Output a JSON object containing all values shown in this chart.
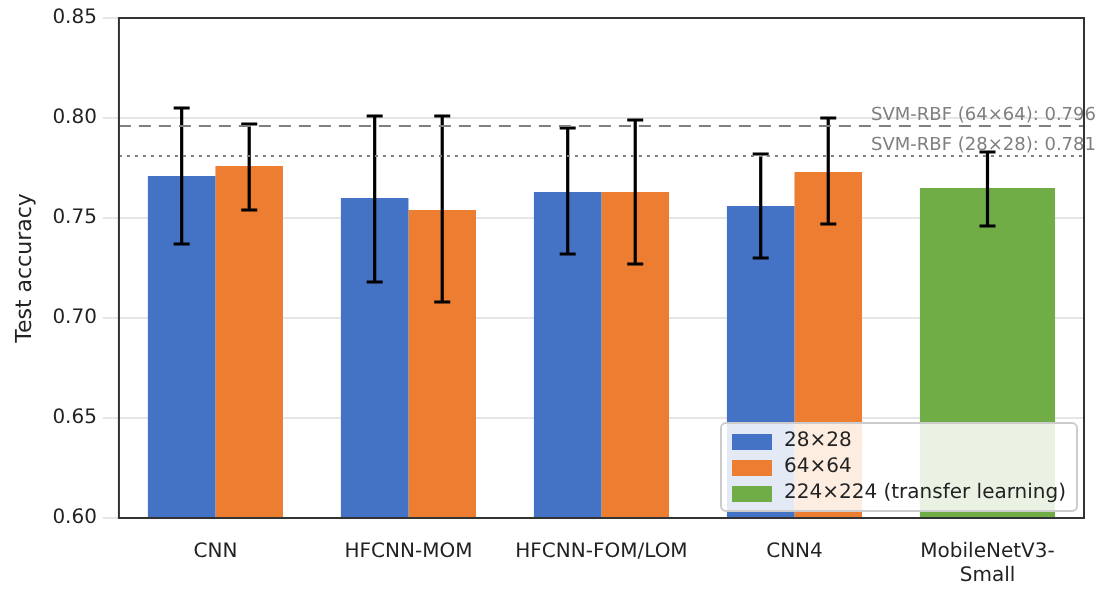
{
  "chart_data": {
    "type": "bar",
    "ylabel": "Test accuracy",
    "categories": [
      "CNN",
      "HFCNN-MOM",
      "HFCNN-FOM/LOM",
      "CNN4",
      "MobileNetV3-\nSmall"
    ],
    "series": [
      {
        "name": "28×28",
        "color": "#4472c4",
        "values": [
          0.771,
          0.76,
          0.763,
          0.756,
          null
        ],
        "errors": [
          [
            0.737,
            0.805
          ],
          [
            0.718,
            0.801
          ],
          [
            0.732,
            0.795
          ],
          [
            0.73,
            0.782
          ],
          null
        ]
      },
      {
        "name": "64×64",
        "color": "#ed7d31",
        "values": [
          0.776,
          0.754,
          0.763,
          0.773,
          null
        ],
        "errors": [
          [
            0.754,
            0.797
          ],
          [
            0.708,
            0.801
          ],
          [
            0.727,
            0.799
          ],
          [
            0.747,
            0.8
          ],
          null
        ]
      },
      {
        "name": "224×224 (transfer learning)",
        "color": "#70ad47",
        "values": [
          null,
          null,
          null,
          null,
          0.765
        ],
        "errors": [
          null,
          null,
          null,
          null,
          [
            0.746,
            0.783
          ]
        ]
      }
    ],
    "ylim": [
      0.6,
      0.85
    ],
    "yticks": [
      {
        "value": 0.6,
        "label": "0.60"
      },
      {
        "value": 0.65,
        "label": "0.65"
      },
      {
        "value": 0.7,
        "label": "0.70"
      },
      {
        "value": 0.75,
        "label": "0.75"
      },
      {
        "value": 0.8,
        "label": "0.80"
      },
      {
        "value": 0.85,
        "label": "0.85"
      }
    ],
    "ref_lines": [
      {
        "axis": "y",
        "value": 0.796,
        "label": "SVM-RBF (64×64): 0.796",
        "color": "#808080",
        "line_style": "dashed"
      },
      {
        "axis": "y",
        "value": 0.781,
        "label": "SVM-RBF (28×28): 0.781",
        "color": "#808080",
        "line_style": "dotted"
      }
    ],
    "grid": "y",
    "legend": "bottom right"
  }
}
